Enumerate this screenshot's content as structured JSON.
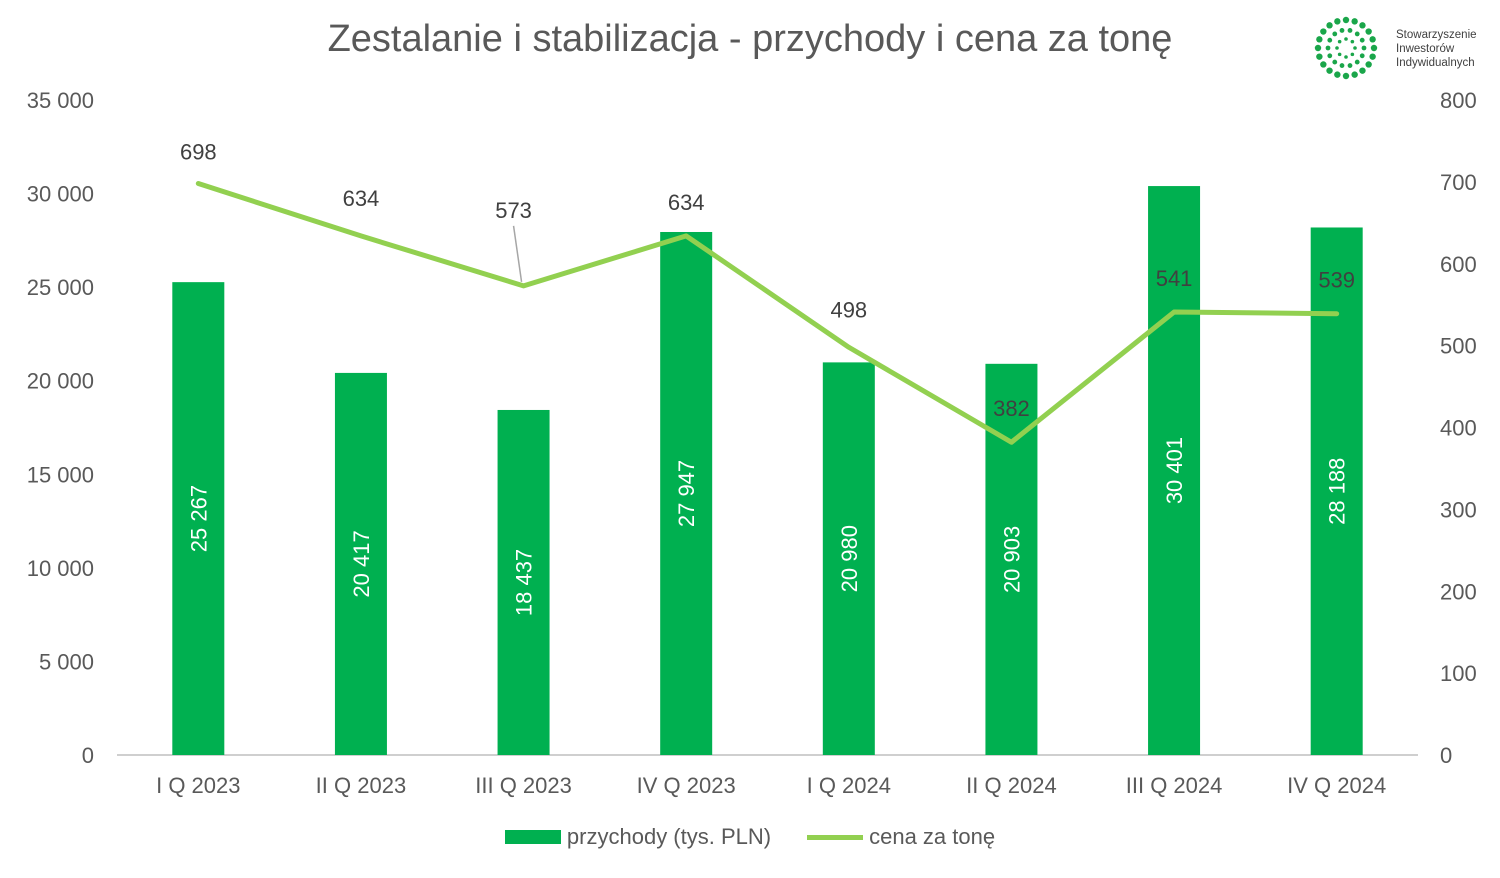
{
  "chart_data": {
    "type": "bar+line",
    "title": "Zestalanie i stabilizacja - przychody i cena za tonę",
    "categories": [
      "I Q 2023",
      "II Q 2023",
      "III Q 2023",
      "IV Q 2023",
      "I Q 2024",
      "II Q 2024",
      "III Q 2024",
      "IV Q 2024"
    ],
    "series": [
      {
        "name": "przychody (tys. PLN)",
        "type": "bar",
        "axis": "left",
        "color": "#00b050",
        "values": [
          25267,
          20417,
          18437,
          27947,
          20980,
          20903,
          30401,
          28188
        ],
        "labels": [
          "25 267",
          "20 417",
          "18 437",
          "27 947",
          "20 980",
          "20 903",
          "30 401",
          "28 188"
        ]
      },
      {
        "name": "cena za tonę",
        "type": "line",
        "axis": "right",
        "color": "#92d050",
        "values": [
          698,
          634,
          573,
          634,
          498,
          382,
          541,
          539
        ],
        "labels": [
          "698",
          "634",
          "573",
          "634",
          "498",
          "382",
          "541",
          "539"
        ]
      }
    ],
    "y_left": {
      "ylim": [
        0,
        35000
      ],
      "ticks": [
        "0",
        "5 000",
        "10 000",
        "15 000",
        "20 000",
        "25 000",
        "30 000",
        "35 000"
      ]
    },
    "y_right": {
      "ylim": [
        0,
        800
      ],
      "ticks": [
        "0",
        "100",
        "200",
        "300",
        "400",
        "500",
        "600",
        "700",
        "800"
      ]
    },
    "grid": false,
    "legend": "bottom"
  },
  "logo": {
    "lines": [
      "Stowarzyszenie",
      "Inwestorów",
      "Indywidualnych"
    ],
    "icon": "sii-dots-ring-icon",
    "color": "#1aa64a"
  }
}
